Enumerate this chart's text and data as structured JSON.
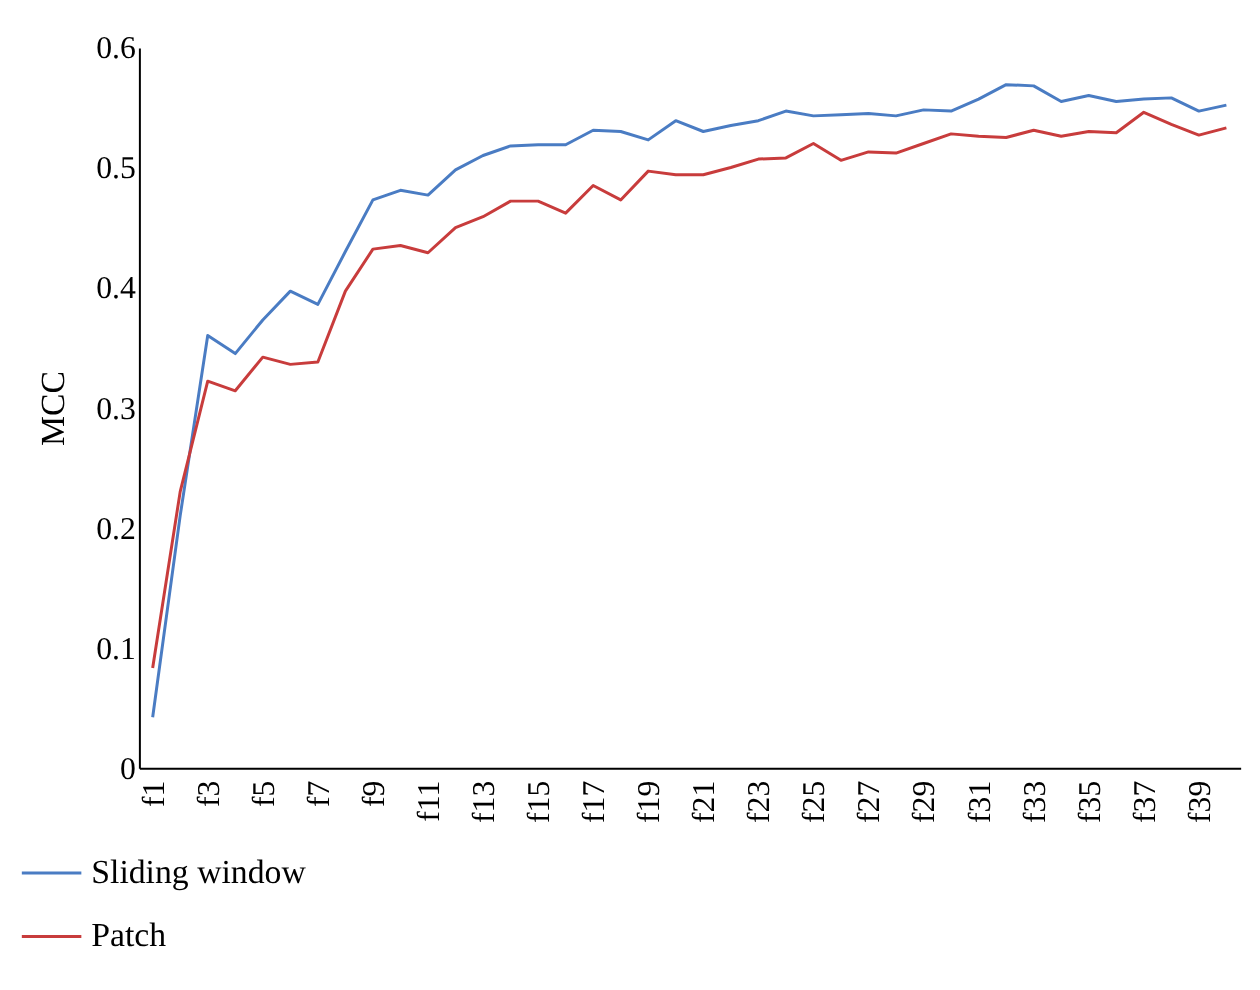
{
  "chart_data": {
    "type": "line",
    "ylabel": "MCC",
    "categories": [
      "f1",
      null,
      "f3",
      null,
      "f5",
      null,
      "f7",
      null,
      "f9",
      null,
      "f11",
      null,
      "f13",
      null,
      "f15",
      null,
      "f17",
      null,
      "f19",
      null,
      "f21",
      null,
      "f23",
      null,
      "f25",
      null,
      "f27",
      null,
      "f29",
      null,
      "f31",
      null,
      "f33",
      null,
      "f35",
      null,
      "f37",
      null,
      "f39",
      null
    ],
    "series": [
      {
        "name": "Sliding window",
        "color": "#4a7cc3",
        "values": [
          0.042,
          0.21,
          0.36,
          0.345,
          0.373,
          0.397,
          0.386,
          0.43,
          0.473,
          0.481,
          0.477,
          0.498,
          0.51,
          0.518,
          0.519,
          0.519,
          0.531,
          0.53,
          0.523,
          0.539,
          0.53,
          0.535,
          0.539,
          0.547,
          0.543,
          0.544,
          0.545,
          0.543,
          0.548,
          0.547,
          0.557,
          0.569,
          0.568,
          0.555,
          0.56,
          0.555,
          0.557,
          0.558,
          0.547,
          0.552
        ]
      },
      {
        "name": "Patch",
        "color": "#c83c3c",
        "values": [
          0.083,
          0.23,
          0.322,
          0.314,
          0.342,
          0.336,
          0.338,
          0.397,
          0.432,
          0.435,
          0.429,
          0.45,
          0.459,
          0.472,
          0.472,
          0.462,
          0.485,
          0.473,
          0.497,
          0.494,
          0.494,
          0.5,
          0.507,
          0.508,
          0.52,
          0.506,
          0.513,
          0.512,
          0.52,
          0.528,
          0.526,
          0.525,
          0.531,
          0.526,
          0.53,
          0.529,
          0.546,
          0.536,
          0.527,
          0.533
        ]
      }
    ],
    "ylim": [
      0,
      0.6
    ],
    "yticks": [
      0,
      0.1,
      0.2,
      0.3,
      0.4,
      0.5,
      0.6
    ],
    "grid": false,
    "legend": "bottom left",
    "line_style": "solid",
    "marker": "none"
  }
}
